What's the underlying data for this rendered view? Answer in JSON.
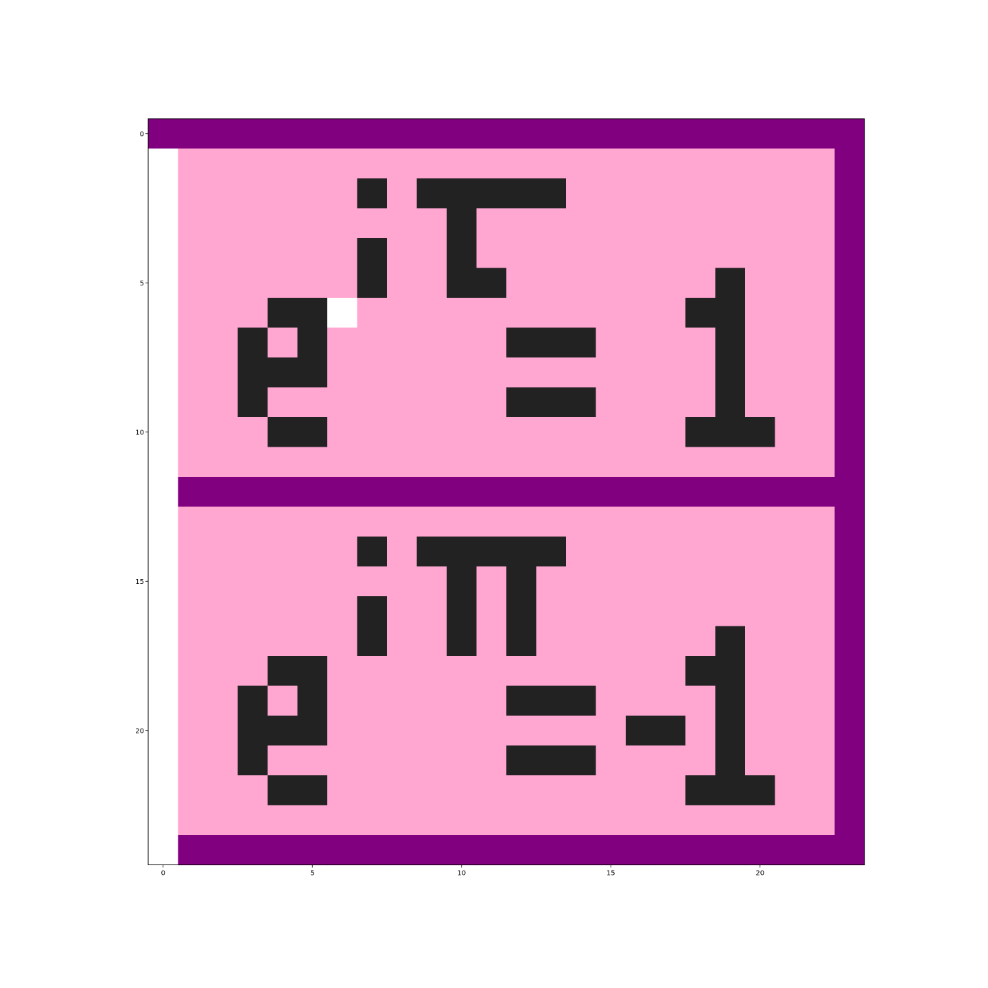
{
  "chart_data": {
    "type": "heatmap",
    "title": "",
    "xlabel": "",
    "ylabel": "",
    "rows": 25,
    "cols": 24,
    "xlim": [
      -0.5,
      23.5
    ],
    "ylim": [
      24.5,
      -0.5
    ],
    "x_ticks": [
      0,
      5,
      10,
      15,
      20
    ],
    "y_ticks": [
      0,
      5,
      10,
      15,
      20
    ],
    "x_tick_labels": [
      "0",
      "5",
      "10",
      "15",
      "20"
    ],
    "y_tick_labels": [
      "0",
      "5",
      "10",
      "15",
      "20"
    ],
    "grid": false,
    "legend": "none",
    "palette": {
      "W": "#ffffff",
      "M": "#800080",
      "P": "#ffa6d1",
      "K": "#222222"
    },
    "grid_rows": [
      "MMMMMMMMMMMMMMMMMMMMMMMM",
      "WPPPPPPPPPPPPPPPPPPPPPPM",
      "WPPPPPPKPKKKKKPPPPPPPPPM",
      "WPPPPPPPPPKPPPPPPPPPPPPM",
      "WPPPPPPKPPKPPPPPPPPPPPPM",
      "WPPPPPPKPPKKPPPPPPPKPPPM",
      "WPPPKKWPPPPPPPPPPPKKPPPM",
      "WPPKPKPPPPPPKKKPPPPKPPPM",
      "WPPKKKPPPPPPPPPPPPPKPPPM",
      "WPPKPPPPPPPPKKKPPPPKPPPM",
      "WPPPKKPPPPPPPPPPPPKKKPPM",
      "WPPPPPPPPPPPPPPPPPPPPPPM",
      "WMMMMMMMMMMMMMMMMMMMMMMM",
      "WPPPPPPPPPPPPPPPPPPPPPPM",
      "WPPPPPPKPKKKKKPPPPPPPPPM",
      "WPPPPPPPPPKPKPPPPPPPPPPM",
      "WPPPPPPKPPKPKPPPPPPPPPPM",
      "WPPPPPPKPPKPKPPPPPPKPPPM",
      "WPPPKKPPPPPPPPPPPPKKPPPM",
      "WPPKPKPPPPPPKKKPPPPKPPPM",
      "WPPKKKPPPPPPPPPPKKPKPPPM",
      "WPPKPPPPPPPPKKKPPPPKPPPM",
      "WPPPKKPPPPPPPPPPPPKKKPPM",
      "WPPPPPPPPPPPPPPPPPPPPPPM",
      "WMMMMMMMMMMMMMMMMMMMMMMM"
    ]
  }
}
